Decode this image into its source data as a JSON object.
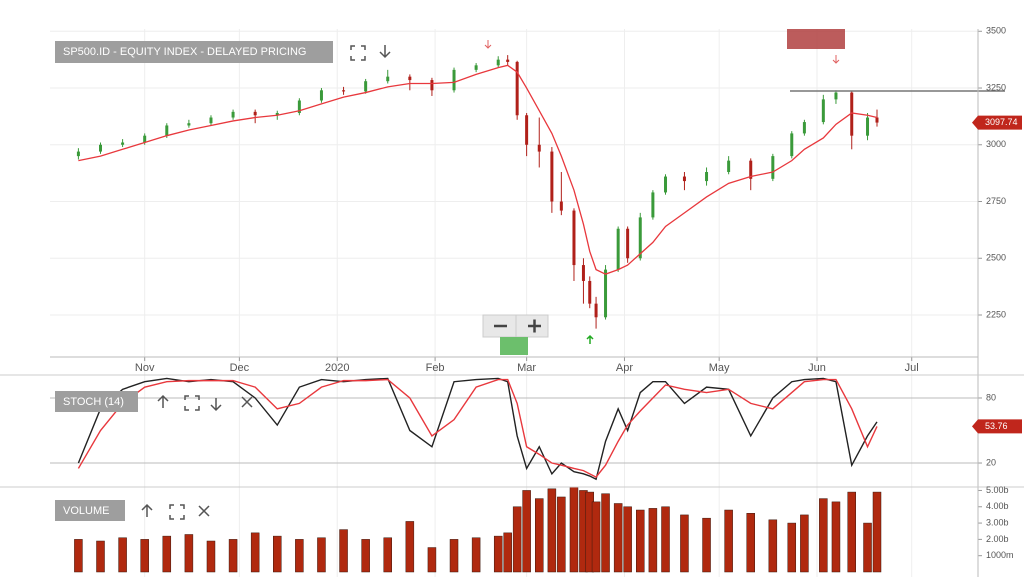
{
  "chart_data": [
    {
      "type": "ohlc",
      "title": "SP500.ID - EQUITY INDEX - DELAYED PRICING",
      "x": [
        10,
        17,
        24,
        31,
        38,
        45,
        52,
        59,
        66,
        73,
        80,
        87,
        94,
        101,
        108,
        115,
        122,
        129,
        136,
        143,
        146,
        149,
        152,
        156,
        160,
        163,
        167,
        170,
        172,
        174,
        177,
        181,
        184,
        188,
        192,
        196,
        202,
        209,
        216,
        223,
        230,
        236,
        240,
        246,
        250,
        255,
        260,
        263
      ],
      "open": [
        2950,
        2970,
        3000,
        3010,
        3040,
        3085,
        3095,
        3120,
        3145,
        3130,
        3140,
        3195,
        3240,
        3235,
        3280,
        3300,
        3285,
        3240,
        3330,
        3350,
        3375,
        3365,
        3130,
        3000,
        2970,
        2750,
        2710,
        2470,
        2400,
        2300,
        2240,
        2450,
        2630,
        2500,
        2680,
        2790,
        2860,
        2840,
        2880,
        2930,
        2850,
        2950,
        3050,
        3100,
        3200,
        3230,
        3040,
        3120
      ],
      "high": [
        2985,
        3010,
        3025,
        3050,
        3095,
        3110,
        3130,
        3155,
        3155,
        3150,
        3205,
        3250,
        3255,
        3290,
        3330,
        3310,
        3295,
        3340,
        3360,
        3390,
        3395,
        3370,
        3140,
        3120,
        2990,
        2880,
        2720,
        2500,
        2420,
        2330,
        2470,
        2640,
        2640,
        2700,
        2800,
        2870,
        2880,
        2900,
        2950,
        2940,
        2960,
        3060,
        3110,
        3220,
        3240,
        3235,
        3140,
        3155
      ],
      "low": [
        2935,
        2960,
        2990,
        3000,
        3030,
        3075,
        3085,
        3110,
        3095,
        3110,
        3130,
        3185,
        3220,
        3225,
        3270,
        3240,
        3215,
        3230,
        3320,
        3340,
        3350,
        3110,
        2950,
        2900,
        2700,
        2690,
        2400,
        2300,
        2280,
        2190,
        2230,
        2440,
        2480,
        2490,
        2670,
        2780,
        2800,
        2820,
        2870,
        2800,
        2840,
        2940,
        3040,
        3090,
        3180,
        2980,
        3020,
        3080
      ],
      "close": [
        2970,
        3000,
        3010,
        3040,
        3085,
        3095,
        3120,
        3145,
        3130,
        3140,
        3195,
        3240,
        3235,
        3280,
        3300,
        3285,
        3240,
        3330,
        3350,
        3375,
        3365,
        3130,
        3000,
        2970,
        2750,
        2710,
        2470,
        2400,
        2300,
        2240,
        2450,
        2630,
        2500,
        2680,
        2790,
        2860,
        2840,
        2880,
        2930,
        2850,
        2950,
        3050,
        3100,
        3200,
        3230,
        3040,
        3120,
        3097.74
      ],
      "ma": [
        2930,
        2950,
        2980,
        3010,
        3040,
        3065,
        3085,
        3105,
        3120,
        3130,
        3150,
        3180,
        3210,
        3230,
        3255,
        3270,
        3270,
        3275,
        3310,
        3340,
        3350,
        3320,
        3250,
        3150,
        3050,
        2950,
        2800,
        2650,
        2530,
        2450,
        2430,
        2450,
        2470,
        2520,
        2570,
        2640,
        2700,
        2770,
        2830,
        2860,
        2880,
        2930,
        2980,
        3030,
        3090,
        3140,
        3130,
        3120
      ],
      "up_color": "#3a9a3a",
      "down_color": "#b0201a",
      "ma_color": "#e8383d",
      "xlim": [
        1,
        295
      ],
      "xticks": [
        {
          "value": 31,
          "label": "Nov"
        },
        {
          "value": 61,
          "label": "Dec"
        },
        {
          "value": 92,
          "label": "2020"
        },
        {
          "value": 123,
          "label": "Feb"
        },
        {
          "value": 152,
          "label": "Mar"
        },
        {
          "value": 183,
          "label": "Apr"
        },
        {
          "value": 213,
          "label": "May"
        },
        {
          "value": 244,
          "label": "Jun"
        },
        {
          "value": 274,
          "label": "Jul"
        }
      ],
      "ylim": [
        2065,
        3510
      ],
      "yticks": [
        2250,
        2500,
        2750,
        3000,
        3250,
        3500
      ],
      "hline": 3237,
      "grid": true
    },
    {
      "type": "line",
      "title": "STOCH (14)",
      "x": [
        10,
        17,
        24,
        31,
        38,
        45,
        52,
        59,
        66,
        73,
        80,
        87,
        94,
        101,
        108,
        115,
        122,
        129,
        136,
        143,
        146,
        149,
        152,
        156,
        160,
        163,
        167,
        170,
        172,
        174,
        177,
        181,
        184,
        188,
        192,
        196,
        202,
        209,
        216,
        223,
        230,
        236,
        240,
        246,
        250,
        255,
        260,
        263
      ],
      "series": [
        {
          "color": "#222222",
          "values": [
            20,
            70,
            88,
            95,
            98,
            95,
            97,
            95,
            80,
            55,
            90,
            97,
            95,
            97,
            98,
            50,
            35,
            95,
            97,
            98,
            95,
            45,
            15,
            35,
            10,
            20,
            12,
            10,
            8,
            5,
            40,
            70,
            50,
            85,
            95,
            95,
            75,
            90,
            88,
            45,
            80,
            95,
            97,
            98,
            95,
            18,
            45,
            58
          ]
        },
        {
          "color": "#e8383d",
          "values": [
            15,
            50,
            75,
            90,
            95,
            96,
            96,
            96,
            90,
            70,
            75,
            90,
            96,
            96,
            97,
            80,
            45,
            60,
            90,
            97,
            97,
            75,
            35,
            28,
            20,
            18,
            15,
            13,
            10,
            7,
            18,
            40,
            55,
            68,
            80,
            92,
            88,
            85,
            88,
            75,
            70,
            85,
            95,
            97,
            97,
            70,
            35,
            53.76
          ]
        }
      ],
      "xlim": [
        1,
        295
      ],
      "ylim": [
        0,
        100
      ],
      "yticks": [
        20,
        80
      ]
    },
    {
      "type": "bar",
      "title": "VOLUME",
      "color": "#b0290f",
      "x": [
        10,
        17,
        24,
        31,
        38,
        45,
        52,
        59,
        66,
        73,
        80,
        87,
        94,
        101,
        108,
        115,
        122,
        129,
        136,
        143,
        146,
        149,
        152,
        156,
        160,
        163,
        167,
        170,
        172,
        174,
        177,
        181,
        184,
        188,
        192,
        196,
        202,
        209,
        216,
        223,
        230,
        236,
        240,
        246,
        250,
        255,
        260,
        263
      ],
      "values": [
        2000000000.0,
        1900000000.0,
        2100000000.0,
        2000000000.0,
        2200000000.0,
        2300000000.0,
        1900000000.0,
        2000000000.0,
        2400000000.0,
        2200000000.0,
        2000000000.0,
        2100000000.0,
        2600000000.0,
        2000000000.0,
        2100000000.0,
        3100000000.0,
        1500000000.0,
        2000000000.0,
        2100000000.0,
        2200000000.0,
        2400000000.0,
        4000000000.0,
        5000000000.0,
        4500000000.0,
        5100000000.0,
        4600000000.0,
        5200000000.0,
        5000000000.0,
        4900000000.0,
        4300000000.0,
        4800000000.0,
        4200000000.0,
        4000000000.0,
        3800000000.0,
        3900000000.0,
        4000000000.0,
        3500000000.0,
        3300000000.0,
        3800000000.0,
        3600000000.0,
        3200000000.0,
        3000000000.0,
        3500000000.0,
        4500000000.0,
        4300000000.0,
        4900000000.0,
        3000000000.0,
        4900000000.0
      ],
      "xlim": [
        1,
        295
      ],
      "ylim": [
        0,
        5150000000.0
      ],
      "yticks": [
        {
          "value": 1000000000.0,
          "label": "1000m"
        },
        {
          "value": 2000000000.0,
          "label": "2.00b"
        },
        {
          "value": 3000000000.0,
          "label": "3.00b"
        },
        {
          "value": 4000000000.0,
          "label": "4.00b"
        },
        {
          "value": 5000000000.0,
          "label": "5.00b"
        }
      ]
    }
  ]
}
